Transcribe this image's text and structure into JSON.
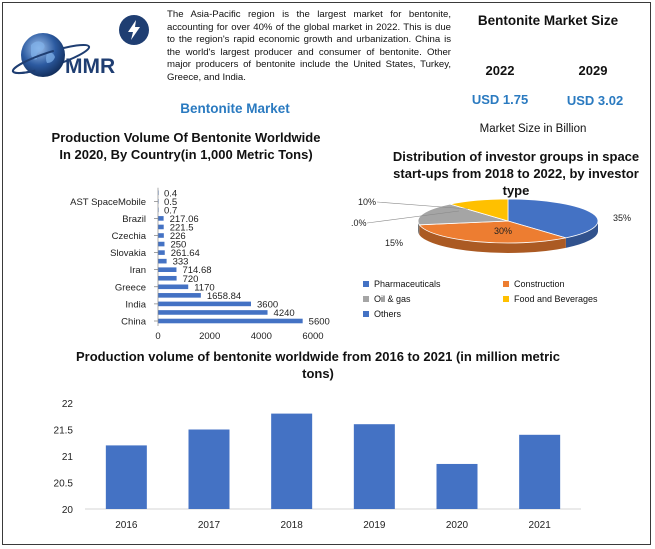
{
  "header": {
    "logo_text": "MMR",
    "description": "The Asia-Pacific region is the largest market for bentonite, accounting for over 40% of the global market in 2022. This is due to the region's rapid economic growth and urbanization. China is the world's largest producer and consumer of bentonite. Other major producers of bentonite include the United States, Turkey, Greece, and India.",
    "title": "Bentonite Market"
  },
  "market_size": {
    "title": "Bentonite Market Size",
    "year_a": "2022",
    "year_b": "2029",
    "value_a": "USD 1.75",
    "value_b": "USD 3.02",
    "subtitle": "Market Size in Billion"
  },
  "colors": {
    "bar_blue": "#4472c4",
    "accent_blue": "#2a7ac0",
    "orange": "#ed7d31",
    "gray": "#a5a5a5",
    "yellow": "#ffc000",
    "logo_navy": "#1f3e72"
  },
  "chart_data": [
    {
      "type": "bar",
      "orientation": "horizontal",
      "title": "Production Volume Of Bentonite Worldwide In 2020, By Country(in 1,000 Metric Tons)",
      "categories": [
        "China",
        "",
        "India",
        "",
        "Greece",
        "",
        "Iran",
        "",
        "Slovakia",
        "",
        "Czechia",
        "",
        "Brazil",
        "",
        "AST SpaceMobile",
        ""
      ],
      "values": [
        5600,
        4240,
        3600,
        1658.84,
        1170,
        720,
        714.68,
        333,
        261.64,
        250,
        226,
        221.5,
        217.06,
        0.7,
        0.5,
        0.4
      ],
      "data_labels": [
        "5600",
        "4240",
        "3600",
        "1658.84",
        "1170",
        "720",
        "714.68",
        "333",
        "261.64",
        "250",
        "226",
        "221.5",
        "217.06",
        "0.7",
        "0.5",
        "0.4"
      ],
      "xlim": [
        0,
        6000
      ],
      "xticks": [
        "0",
        "2000",
        "4000",
        "6000"
      ],
      "grid": false
    },
    {
      "type": "pie",
      "title": "Distribution of investor groups in space start-ups from 2018 to 2022, by investor type",
      "slices": [
        {
          "name": "Pharmaceuticals",
          "value": 35,
          "label": "35%",
          "color": "#4472c4"
        },
        {
          "name": "Construction",
          "value": 30,
          "label": "30%",
          "color": "#ed7d31"
        },
        {
          "name": "Oil & gas",
          "value": 15,
          "label": "15%",
          "color": "#a5a5a5"
        },
        {
          "name": "Food and Beverages",
          "value": 10,
          "label": "10%",
          "color": "#ffc000"
        },
        {
          "name": "Others",
          "value": 0,
          "label": ".0%",
          "color": "#4472c4"
        }
      ],
      "legend": [
        "Pharmaceuticals",
        "Construction",
        "Oil & gas",
        "Food and Beverages",
        "Others"
      ],
      "legend_position": "bottom",
      "style": "3d"
    },
    {
      "type": "bar",
      "title": "Production volume of bentonite worldwide from 2016 to 2021 (in million metric tons)",
      "categories": [
        "2016",
        "2017",
        "2018",
        "2019",
        "2020",
        "2021"
      ],
      "values": [
        21.2,
        21.5,
        21.8,
        21.6,
        20.85,
        21.4
      ],
      "ylim": [
        20,
        22
      ],
      "yticks": [
        "20",
        "20.5",
        "21",
        "21.5",
        "22"
      ],
      "grid": false
    }
  ]
}
